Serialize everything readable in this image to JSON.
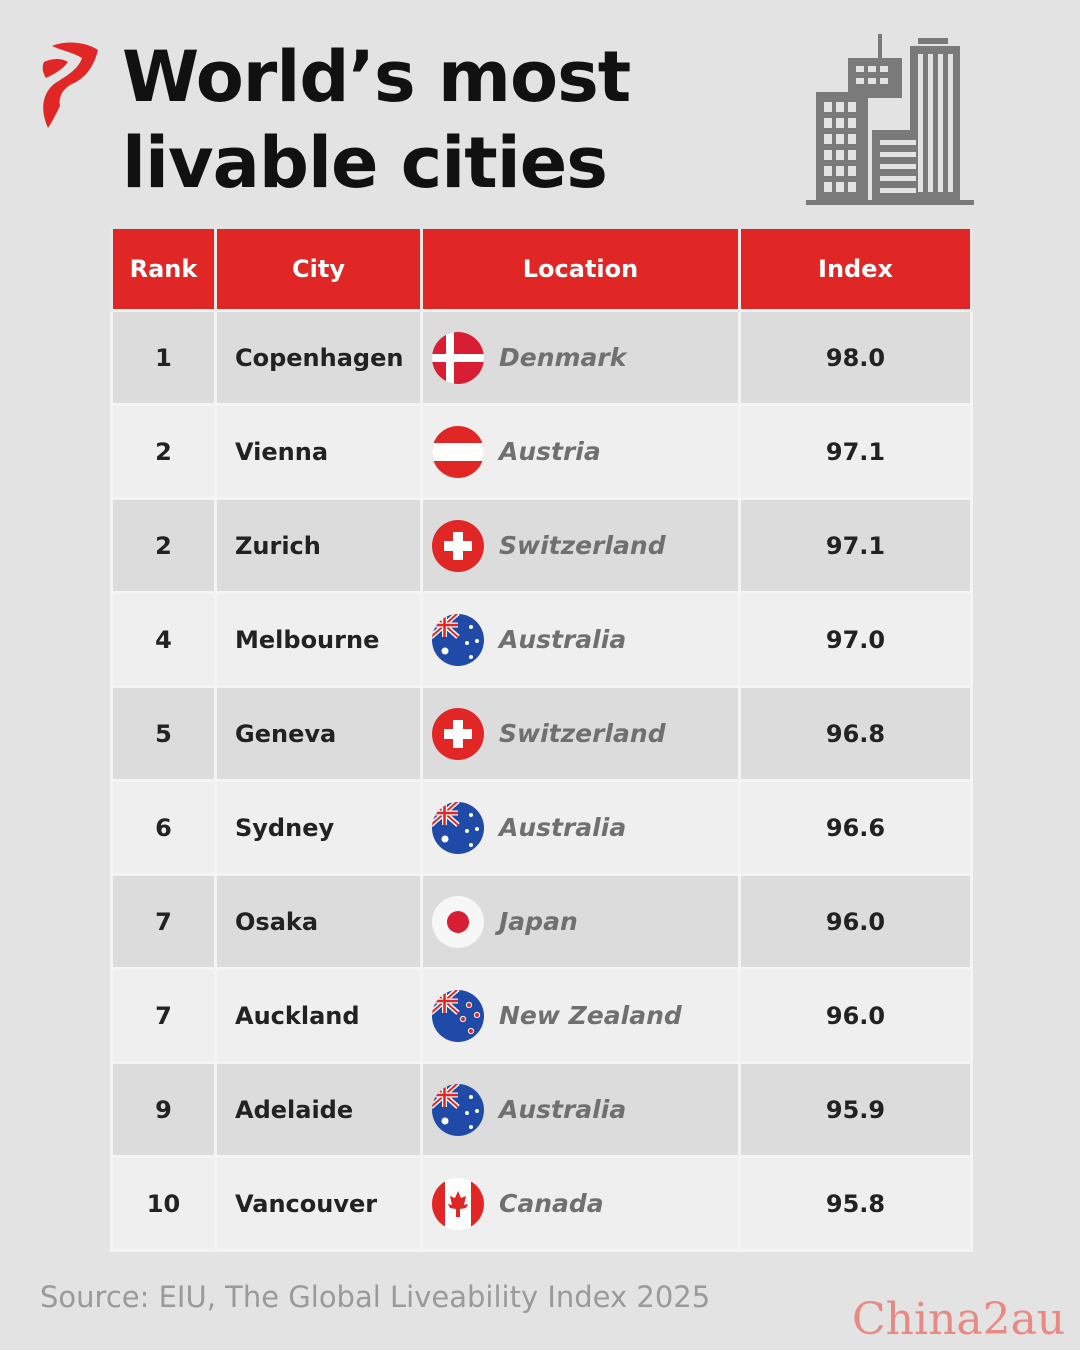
{
  "header": {
    "title_line1": "World’s most",
    "title_line2": "livable cities"
  },
  "colors": {
    "accent": "#e02726",
    "index_text": "#d62222",
    "background": "#e3e3e3"
  },
  "chart_data": {
    "type": "table",
    "columns": [
      "Rank",
      "City",
      "Location",
      "Index"
    ],
    "rows": [
      {
        "rank": "1",
        "city": "Copenhagen",
        "location": "Denmark",
        "flag": "denmark-flag-icon",
        "index": "98.0"
      },
      {
        "rank": "2",
        "city": "Vienna",
        "location": "Austria",
        "flag": "austria-flag-icon",
        "index": "97.1"
      },
      {
        "rank": "2",
        "city": "Zurich",
        "location": "Switzerland",
        "flag": "switzerland-flag-icon",
        "index": "97.1"
      },
      {
        "rank": "4",
        "city": "Melbourne",
        "location": "Australia",
        "flag": "australia-flag-icon",
        "index": "97.0"
      },
      {
        "rank": "5",
        "city": "Geneva",
        "location": "Switzerland",
        "flag": "switzerland-flag-icon",
        "index": "96.8"
      },
      {
        "rank": "6",
        "city": "Sydney",
        "location": "Australia",
        "flag": "australia-flag-icon",
        "index": "96.6"
      },
      {
        "rank": "7",
        "city": "Osaka",
        "location": "Japan",
        "flag": "japan-flag-icon",
        "index": "96.0"
      },
      {
        "rank": "7",
        "city": "Auckland",
        "location": "New Zealand",
        "flag": "new-zealand-flag-icon",
        "index": "96.0"
      },
      {
        "rank": "9",
        "city": "Adelaide",
        "location": "Australia",
        "flag": "australia-flag-icon",
        "index": "95.9"
      },
      {
        "rank": "10",
        "city": "Vancouver",
        "location": "Canada",
        "flag": "canada-flag-icon",
        "index": "95.8"
      }
    ]
  },
  "footer": {
    "source": "Source: EIU, The Global Liveability Index 2025",
    "watermark": "China2au"
  }
}
